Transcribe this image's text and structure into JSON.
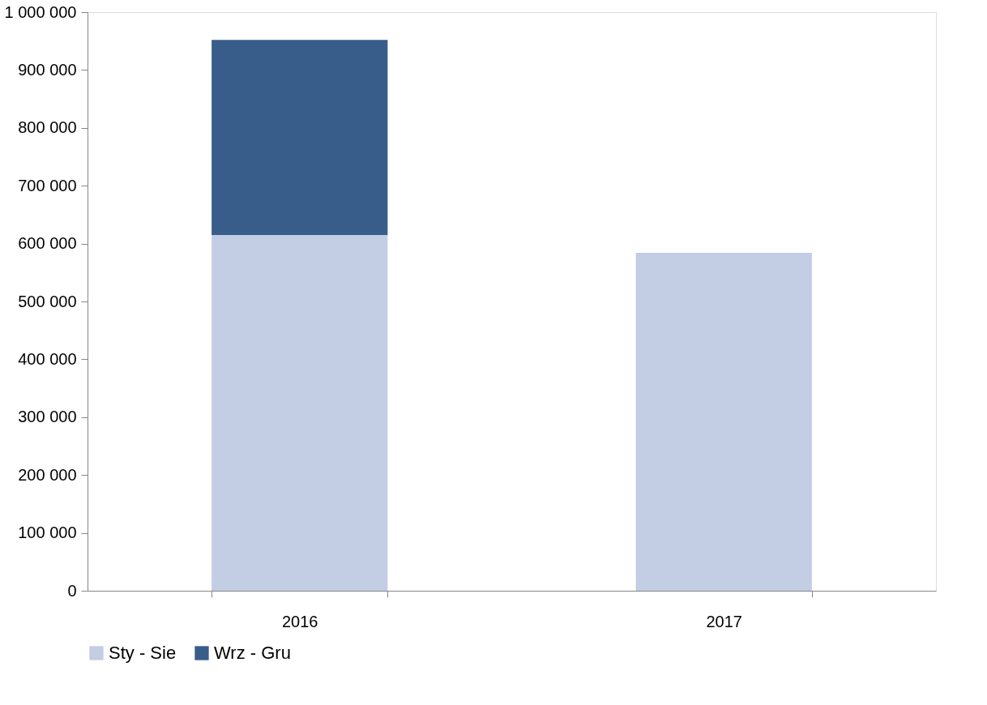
{
  "chart_data": {
    "type": "bar",
    "stacked": true,
    "categories": [
      "2016",
      "2017"
    ],
    "series": [
      {
        "name": "Sty - Sie",
        "color": "#c3cde3",
        "values": [
          615000,
          584000
        ]
      },
      {
        "name": "Wrz - Gru",
        "color": "#385d8a",
        "values": [
          337000,
          null
        ]
      }
    ],
    "ylim": [
      0,
      1000000
    ],
    "yticks": [
      0,
      {
        "value": 100000,
        "label": "100 000"
      },
      {
        "value": 200000,
        "label": "200 000"
      },
      {
        "value": 300000,
        "label": "300 000"
      },
      {
        "value": 400000,
        "label": "400 000"
      },
      {
        "value": 500000,
        "label": "500 000"
      },
      {
        "value": 600000,
        "label": "600 000"
      },
      {
        "value": 700000,
        "label": "700 000"
      },
      {
        "value": 800000,
        "label": "800 000"
      },
      {
        "value": 900000,
        "label": "900 000"
      },
      {
        "value": 1000000,
        "label": "1 000 000"
      }
    ],
    "grid": false,
    "legend": "bottom"
  }
}
